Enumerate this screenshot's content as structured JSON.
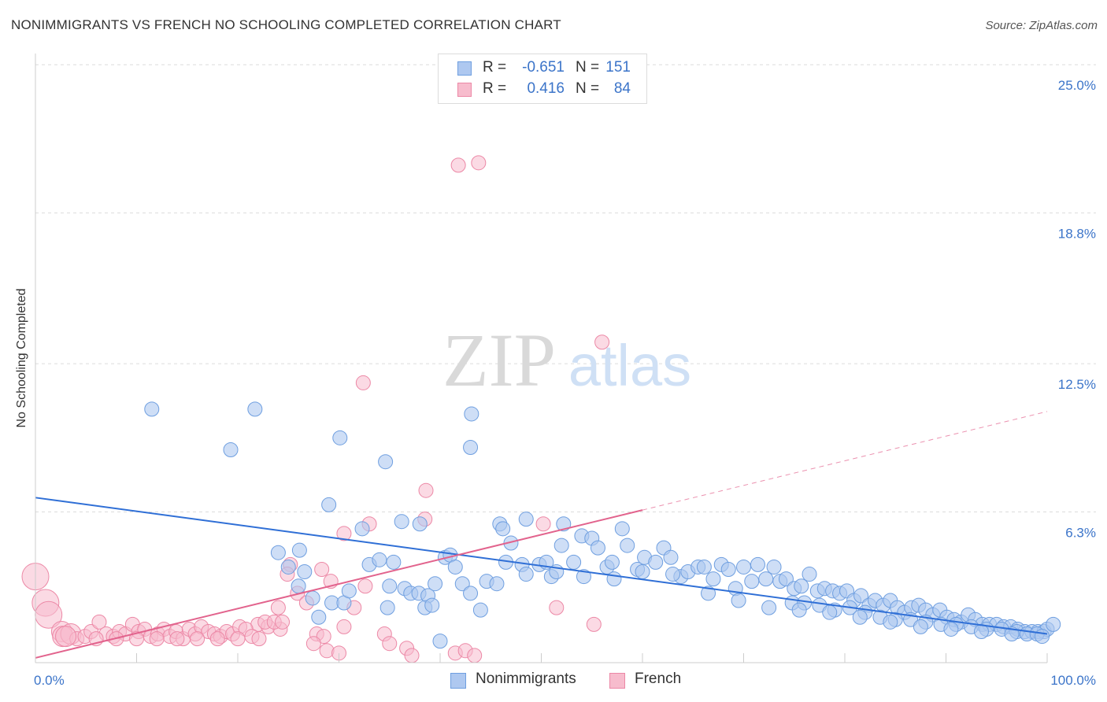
{
  "title": "NONIMMIGRANTS VS FRENCH NO SCHOOLING COMPLETED CORRELATION CHART",
  "source": "Source: ZipAtlas.com",
  "watermark": {
    "zip": "ZIP",
    "atlas": "atlas"
  },
  "colors": {
    "blue_fill": "#aec8f0",
    "blue_stroke": "#6f9fe0",
    "blue_line": "#2f6fd6",
    "pink_fill": "#f7bccd",
    "pink_stroke": "#ec88a6",
    "pink_line": "#e2638d",
    "tick_text": "#3b74c9",
    "grid": "#dcdcdc"
  },
  "stats": [
    {
      "series": "Nonimmigrants",
      "r_label": "R =",
      "r_value": "-0.651",
      "n_label": "N =",
      "n_value": "151"
    },
    {
      "series": "French",
      "r_label": "R =",
      "r_value": "0.416",
      "n_label": "N =",
      "n_value": "84"
    }
  ],
  "chart_data": {
    "type": "scatter",
    "title": "NONIMMIGRANTS VS FRENCH NO SCHOOLING COMPLETED CORRELATION CHART",
    "xlabel": "",
    "ylabel": "No Schooling Completed",
    "x_ticks": [
      "0.0%",
      "100.0%"
    ],
    "y_ticks": [
      "6.3%",
      "12.5%",
      "18.8%",
      "25.0%"
    ],
    "y_tick_values": [
      6.3,
      12.5,
      18.8,
      25.0
    ],
    "xlim": [
      0,
      100
    ],
    "ylim": [
      0,
      25.6
    ],
    "grid": true,
    "legend_position": "bottom-center",
    "series": [
      {
        "name": "Nonimmigrants",
        "color": "#6f9fe0",
        "trend": {
          "x": [
            0,
            100
          ],
          "y": [
            6.9,
            1.2
          ],
          "dashed_from": null
        },
        "points": [
          [
            11.5,
            10.6
          ],
          [
            21.7,
            10.6
          ],
          [
            19.3,
            8.9
          ],
          [
            30.1,
            9.4
          ],
          [
            34.6,
            8.4
          ],
          [
            43.1,
            10.4
          ],
          [
            43.0,
            9.0
          ],
          [
            29.0,
            6.6
          ],
          [
            36.2,
            5.9
          ],
          [
            38.0,
            5.8
          ],
          [
            32.3,
            5.6
          ],
          [
            45.9,
            5.8
          ],
          [
            46.2,
            5.6
          ],
          [
            48.5,
            6.0
          ],
          [
            52.2,
            5.8
          ],
          [
            58.0,
            5.6
          ],
          [
            24.0,
            4.6
          ],
          [
            26.1,
            4.7
          ],
          [
            25.0,
            4.0
          ],
          [
            26.6,
            3.8
          ],
          [
            26.0,
            3.2
          ],
          [
            27.4,
            2.7
          ],
          [
            28.0,
            1.9
          ],
          [
            29.3,
            2.5
          ],
          [
            30.5,
            2.5
          ],
          [
            31.0,
            3.0
          ],
          [
            33.0,
            4.1
          ],
          [
            34.0,
            4.3
          ],
          [
            35.4,
            4.2
          ],
          [
            35.0,
            3.2
          ],
          [
            36.5,
            3.1
          ],
          [
            37.1,
            2.9
          ],
          [
            37.9,
            2.9
          ],
          [
            38.8,
            2.8
          ],
          [
            38.5,
            2.3
          ],
          [
            39.2,
            2.4
          ],
          [
            40.5,
            4.4
          ],
          [
            41.0,
            4.5
          ],
          [
            41.5,
            4.0
          ],
          [
            42.2,
            3.3
          ],
          [
            43.0,
            2.9
          ],
          [
            44.6,
            3.4
          ],
          [
            45.6,
            3.3
          ],
          [
            47.0,
            5.0
          ],
          [
            48.1,
            4.1
          ],
          [
            48.5,
            3.7
          ],
          [
            49.8,
            4.1
          ],
          [
            50.5,
            4.2
          ],
          [
            51.0,
            3.6
          ],
          [
            52.0,
            4.9
          ],
          [
            53.2,
            4.2
          ],
          [
            54.0,
            5.3
          ],
          [
            55.0,
            5.2
          ],
          [
            55.6,
            4.8
          ],
          [
            56.5,
            4.0
          ],
          [
            57.2,
            3.5
          ],
          [
            58.5,
            4.9
          ],
          [
            59.5,
            3.9
          ],
          [
            60.2,
            4.4
          ],
          [
            61.3,
            4.2
          ],
          [
            62.1,
            4.8
          ],
          [
            62.8,
            4.4
          ],
          [
            63.8,
            3.6
          ],
          [
            64.5,
            3.8
          ],
          [
            65.5,
            4.0
          ],
          [
            66.1,
            4.0
          ],
          [
            67.0,
            3.5
          ],
          [
            67.8,
            4.1
          ],
          [
            68.5,
            3.9
          ],
          [
            69.2,
            3.1
          ],
          [
            70.0,
            4.0
          ],
          [
            70.8,
            3.4
          ],
          [
            71.4,
            4.1
          ],
          [
            72.2,
            3.5
          ],
          [
            73.0,
            4.0
          ],
          [
            73.6,
            3.4
          ],
          [
            74.2,
            3.5
          ],
          [
            75.0,
            3.1
          ],
          [
            75.7,
            3.2
          ],
          [
            76.5,
            3.7
          ],
          [
            77.3,
            3.0
          ],
          [
            78.0,
            3.1
          ],
          [
            78.8,
            3.0
          ],
          [
            79.5,
            2.9
          ],
          [
            80.2,
            3.0
          ],
          [
            80.9,
            2.6
          ],
          [
            81.6,
            2.8
          ],
          [
            82.4,
            2.4
          ],
          [
            83.0,
            2.6
          ],
          [
            83.8,
            2.4
          ],
          [
            84.5,
            2.6
          ],
          [
            85.2,
            2.3
          ],
          [
            85.9,
            2.1
          ],
          [
            86.6,
            2.3
          ],
          [
            87.3,
            2.4
          ],
          [
            88.0,
            2.2
          ],
          [
            88.7,
            2.0
          ],
          [
            89.4,
            2.2
          ],
          [
            90.1,
            1.9
          ],
          [
            90.8,
            1.8
          ],
          [
            91.5,
            1.7
          ],
          [
            92.2,
            2.0
          ],
          [
            92.9,
            1.8
          ],
          [
            93.6,
            1.6
          ],
          [
            94.3,
            1.6
          ],
          [
            95.0,
            1.6
          ],
          [
            95.7,
            1.5
          ],
          [
            96.4,
            1.5
          ],
          [
            97.1,
            1.4
          ],
          [
            97.8,
            1.3
          ],
          [
            98.5,
            1.3
          ],
          [
            99.1,
            1.3
          ],
          [
            99.7,
            1.3
          ],
          [
            100.0,
            1.4
          ],
          [
            100.6,
            1.6
          ],
          [
            74.8,
            2.5
          ],
          [
            76.0,
            2.5
          ],
          [
            77.5,
            2.4
          ],
          [
            79.0,
            2.2
          ],
          [
            80.5,
            2.3
          ],
          [
            82.0,
            2.1
          ],
          [
            83.5,
            1.9
          ],
          [
            85.0,
            1.8
          ],
          [
            86.5,
            1.8
          ],
          [
            88.0,
            1.7
          ],
          [
            89.5,
            1.6
          ],
          [
            91.0,
            1.6
          ],
          [
            92.5,
            1.5
          ],
          [
            94.0,
            1.4
          ],
          [
            95.5,
            1.4
          ],
          [
            97.0,
            1.3
          ],
          [
            98.0,
            1.2
          ],
          [
            99.0,
            1.2
          ],
          [
            99.5,
            1.1
          ],
          [
            96.5,
            1.2
          ],
          [
            93.5,
            1.3
          ],
          [
            90.5,
            1.4
          ],
          [
            87.5,
            1.5
          ],
          [
            84.5,
            1.7
          ],
          [
            81.5,
            1.9
          ],
          [
            78.5,
            2.1
          ],
          [
            75.5,
            2.2
          ],
          [
            72.5,
            2.3
          ],
          [
            69.5,
            2.6
          ],
          [
            66.5,
            2.9
          ],
          [
            63.0,
            3.7
          ],
          [
            60.0,
            3.8
          ],
          [
            57.0,
            4.2
          ],
          [
            54.2,
            3.6
          ],
          [
            51.5,
            3.8
          ],
          [
            44.0,
            2.2
          ],
          [
            39.5,
            3.3
          ],
          [
            40.0,
            0.9
          ],
          [
            34.8,
            2.3
          ],
          [
            46.5,
            4.2
          ]
        ]
      },
      {
        "name": "French",
        "color": "#ec88a6",
        "trend": {
          "x": [
            0,
            100
          ],
          "y": [
            0.2,
            10.5
          ],
          "dashed_from": 60
        },
        "points": [
          [
            41.8,
            20.8
          ],
          [
            43.8,
            20.9
          ],
          [
            56.0,
            13.4
          ],
          [
            32.4,
            11.7
          ],
          [
            38.6,
            7.2
          ],
          [
            38.5,
            6.0
          ],
          [
            33.0,
            5.8
          ],
          [
            50.2,
            5.8
          ],
          [
            30.5,
            5.4
          ],
          [
            25.2,
            4.1
          ],
          [
            28.3,
            3.9
          ],
          [
            29.2,
            3.4
          ],
          [
            32.6,
            3.2
          ],
          [
            24.9,
            3.7
          ],
          [
            25.9,
            2.9
          ],
          [
            24.0,
            2.3
          ],
          [
            26.8,
            2.5
          ],
          [
            51.5,
            2.3
          ],
          [
            55.2,
            1.6
          ],
          [
            31.5,
            2.3
          ],
          [
            30.5,
            1.5
          ],
          [
            22.0,
            1.6
          ],
          [
            23.0,
            1.5
          ],
          [
            24.2,
            1.4
          ],
          [
            27.8,
            1.2
          ],
          [
            28.5,
            1.1
          ],
          [
            34.5,
            1.2
          ],
          [
            35.0,
            0.8
          ],
          [
            36.7,
            0.6
          ],
          [
            37.2,
            0.3
          ],
          [
            41.5,
            0.4
          ],
          [
            42.5,
            0.5
          ],
          [
            43.4,
            0.3
          ],
          [
            27.5,
            0.8
          ],
          [
            28.8,
            0.5
          ],
          [
            30.0,
            0.4
          ],
          [
            0.0,
            3.6
          ],
          [
            1.0,
            2.5
          ],
          [
            1.3,
            2.0
          ],
          [
            2.6,
            1.3
          ],
          [
            2.7,
            1.1
          ],
          [
            3.5,
            1.2
          ],
          [
            4.1,
            1.0
          ],
          [
            4.9,
            1.1
          ],
          [
            5.5,
            1.3
          ],
          [
            6.3,
            1.7
          ],
          [
            7.0,
            1.2
          ],
          [
            7.7,
            1.1
          ],
          [
            8.3,
            1.3
          ],
          [
            8.9,
            1.2
          ],
          [
            9.6,
            1.6
          ],
          [
            10.2,
            1.3
          ],
          [
            10.8,
            1.4
          ],
          [
            11.4,
            1.1
          ],
          [
            12.1,
            1.2
          ],
          [
            12.7,
            1.4
          ],
          [
            13.3,
            1.1
          ],
          [
            13.9,
            1.3
          ],
          [
            14.6,
            1.0
          ],
          [
            15.2,
            1.4
          ],
          [
            15.8,
            1.2
          ],
          [
            16.4,
            1.5
          ],
          [
            17.1,
            1.3
          ],
          [
            17.7,
            1.2
          ],
          [
            18.3,
            1.1
          ],
          [
            18.9,
            1.3
          ],
          [
            19.5,
            1.2
          ],
          [
            20.2,
            1.5
          ],
          [
            20.8,
            1.4
          ],
          [
            21.4,
            1.1
          ],
          [
            22.7,
            1.7
          ],
          [
            23.6,
            1.7
          ],
          [
            24.4,
            1.7
          ],
          [
            22.1,
            1.0
          ],
          [
            20.0,
            1.0
          ],
          [
            18.0,
            1.0
          ],
          [
            16.0,
            1.0
          ],
          [
            14.0,
            1.0
          ],
          [
            12.0,
            1.0
          ],
          [
            10.0,
            1.0
          ],
          [
            8.0,
            1.0
          ],
          [
            6.0,
            1.0
          ],
          [
            3.0,
            1.1
          ]
        ]
      }
    ]
  },
  "legend": [
    {
      "label": "Nonimmigrants"
    },
    {
      "label": "French"
    }
  ]
}
